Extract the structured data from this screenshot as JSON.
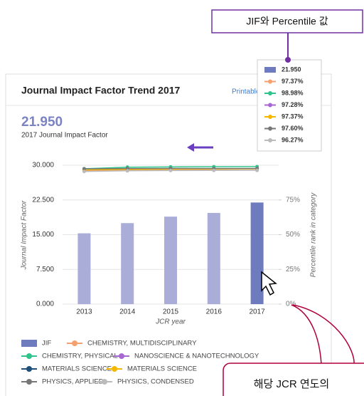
{
  "chart_data": {
    "type": "bar",
    "title": "Journal Impact Factor Trend 2017",
    "link": "Printable",
    "headline_value": "21.950",
    "headline_label": "2017 Journal Impact Factor",
    "categories": [
      "2013",
      "2014",
      "2015",
      "2016",
      "2017"
    ],
    "xlabel": "JCR year",
    "ylabel": "Journal Impact Factor",
    "y2label": "Percentile rank in category",
    "ylim": [
      0,
      30
    ],
    "yticks": [
      {
        "value": 0,
        "label": "0.000"
      },
      {
        "value": 7.5,
        "label": "7.500"
      },
      {
        "value": 15,
        "label": "15.000"
      },
      {
        "value": 22.5,
        "label": "22.500"
      },
      {
        "value": 30,
        "label": "30.000"
      }
    ],
    "y2lim": [
      0,
      100
    ],
    "y2ticks": [
      {
        "value": 0,
        "label": "0%"
      },
      {
        "value": 25,
        "label": "25%"
      },
      {
        "value": 50,
        "label": "50%"
      },
      {
        "value": 75,
        "label": "75%"
      }
    ],
    "series": [
      {
        "name": "JIF",
        "type": "bar",
        "color": "#a9add8",
        "highlight_color": "#6f7bbf",
        "values": [
          15.3,
          17.5,
          18.9,
          19.7,
          21.95
        ],
        "value_labels": [
          null,
          null,
          null,
          null,
          "21.950"
        ]
      },
      {
        "name": "CHEMISTRY, MULTIDISCIPLINARY",
        "type": "line",
        "axis": "y2",
        "color": "#f5a06e",
        "values": [
          95.8,
          96.5,
          96.9,
          97.1,
          97.37
        ],
        "value_labels": [
          null,
          null,
          null,
          null,
          "97.37%"
        ]
      },
      {
        "name": "CHEMISTRY, PHYSICAL",
        "type": "line",
        "axis": "y2",
        "color": "#2fc48b",
        "values": [
          97.5,
          98.6,
          98.8,
          98.9,
          98.98
        ],
        "value_labels": [
          null,
          null,
          null,
          null,
          "98.98%"
        ]
      },
      {
        "name": "NANOSCIENCE & NANOTECHNOLOGY",
        "type": "line",
        "axis": "y2",
        "color": "#a868d2",
        "values": [
          96.5,
          97.0,
          97.2,
          97.3,
          97.28
        ],
        "value_labels": [
          null,
          null,
          null,
          null,
          "97.28%"
        ]
      },
      {
        "name": "MATERIALS SCIENCE",
        "type": "line",
        "axis": "y2",
        "color": "#1f4e79",
        "values": [
          null,
          null,
          null,
          null,
          null
        ],
        "value_labels": [
          null,
          null,
          null,
          null,
          null
        ]
      },
      {
        "name": "MATERIALS SCIENCE",
        "type": "line",
        "axis": "y2",
        "color": "#f5b800",
        "values": [
          96.6,
          97.0,
          97.2,
          97.3,
          97.37
        ],
        "value_labels": [
          null,
          null,
          null,
          null,
          "97.37%"
        ]
      },
      {
        "name": "PHYSICS, APPLIED",
        "type": "line",
        "axis": "y2",
        "color": "#777777",
        "values": [
          97.4,
          97.6,
          97.7,
          97.6,
          97.6
        ],
        "value_labels": [
          null,
          null,
          null,
          null,
          "97.60%"
        ]
      },
      {
        "name": "PHYSICS, CONDENSED",
        "type": "line",
        "axis": "y2",
        "color": "#bbbbbb",
        "values": [
          95.5,
          96.0,
          96.2,
          96.3,
          96.27
        ],
        "value_labels": [
          null,
          null,
          null,
          null,
          "96.27%"
        ]
      }
    ],
    "annotations": {
      "top": "JIF와 Percentile 값",
      "bottom": "해당 JCR 연도의"
    }
  }
}
